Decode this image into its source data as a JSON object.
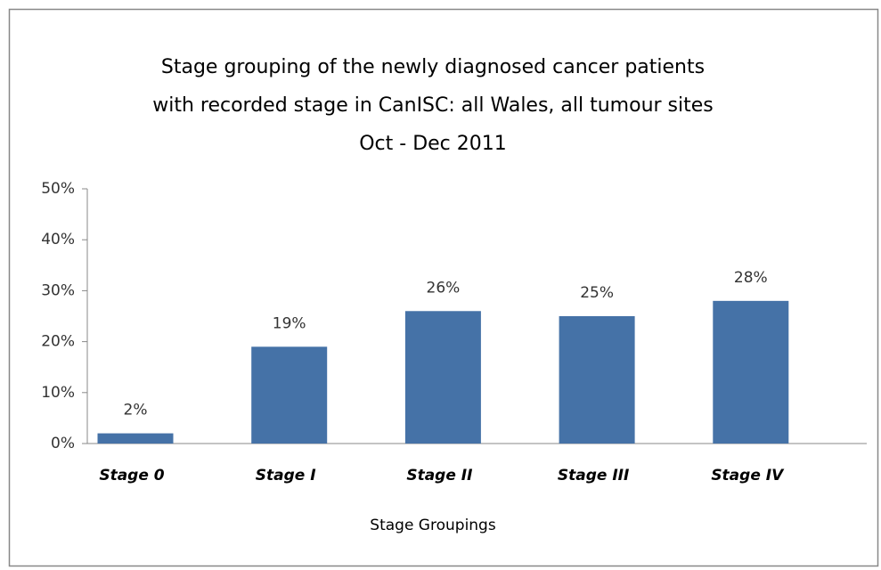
{
  "chart_data": {
    "type": "bar",
    "title": [
      "Stage grouping of the newly diagnosed cancer patients",
      "with recorded  stage in CanISC: all Wales, all tumour sites",
      "Oct - Dec 2011"
    ],
    "x_label": "Stage Groupings",
    "categories": [
      "Stage 0",
      "Stage I",
      "Stage II",
      "Stage III",
      "Stage IV"
    ],
    "values": [
      2,
      19,
      26,
      25,
      28
    ],
    "value_labels": [
      "2%",
      "19%",
      "26%",
      "25%",
      "28%"
    ],
    "color": "#4572a7",
    "ylim": [
      0,
      50
    ],
    "yticks": [
      {
        "value": 0,
        "label": "0%"
      },
      {
        "value": 10,
        "label": "10%"
      },
      {
        "value": 20,
        "label": "20%"
      },
      {
        "value": 30,
        "label": "30%"
      },
      {
        "value": 40,
        "label": "40%"
      },
      {
        "value": 50,
        "label": "50%"
      }
    ],
    "grid": false
  }
}
